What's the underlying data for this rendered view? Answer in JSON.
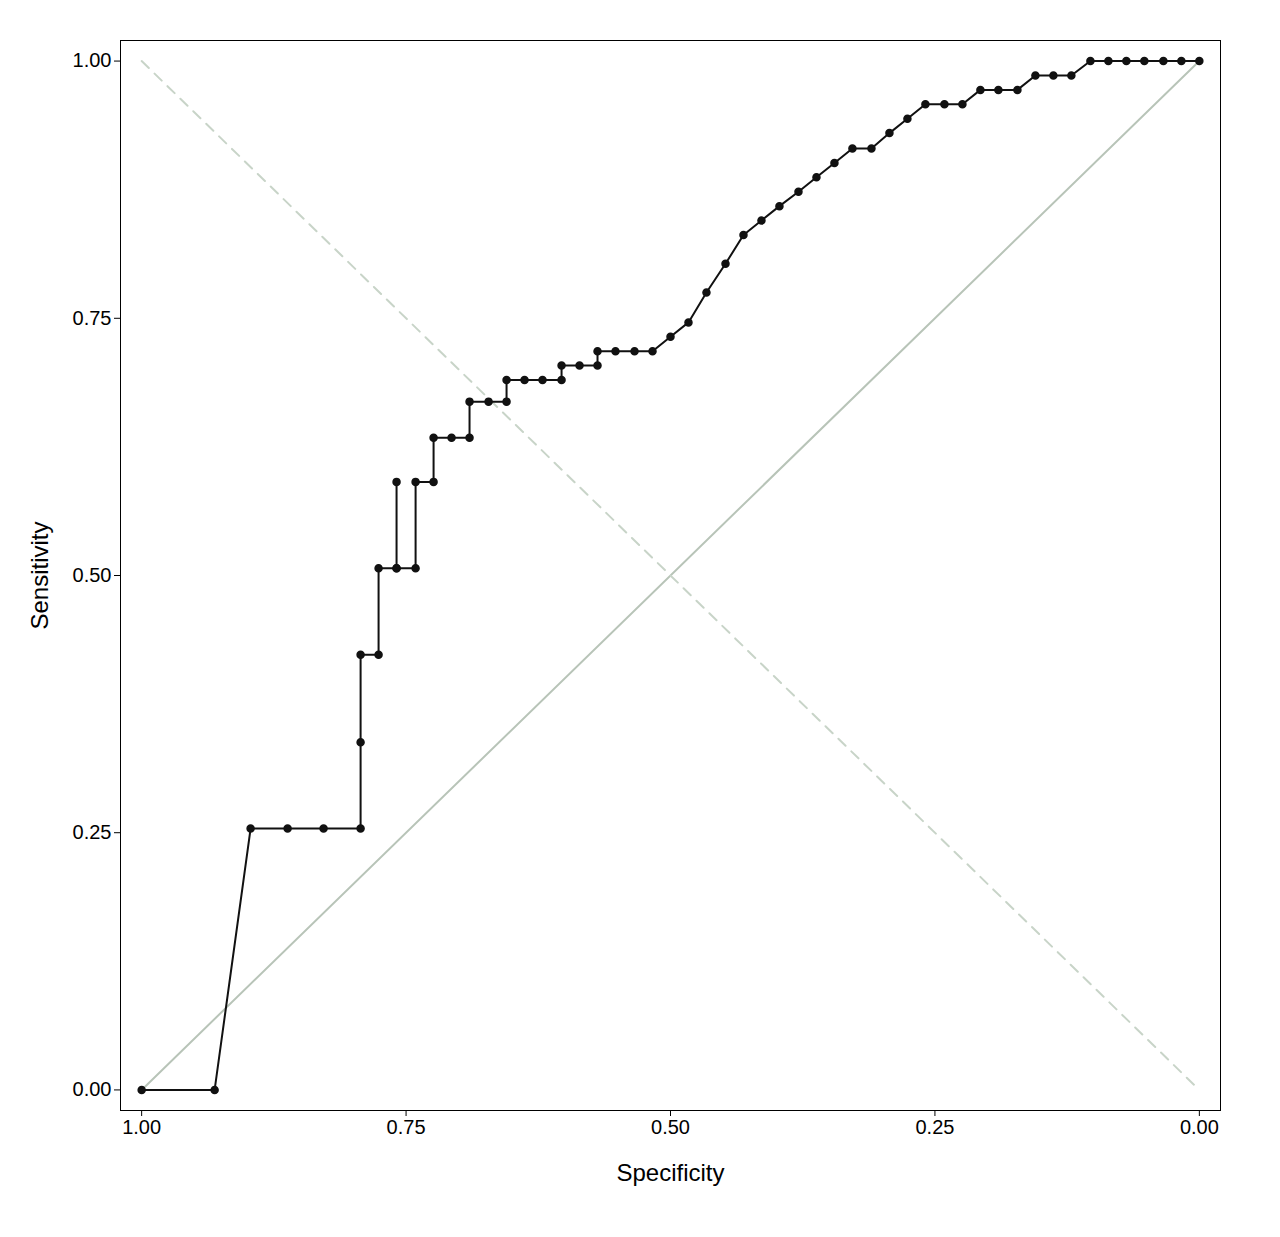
{
  "chart_data": {
    "type": "line",
    "xlabel": "Specificity",
    "ylabel": "Sensitivity",
    "xlim": [
      1.02,
      -0.02
    ],
    "ylim": [
      -0.02,
      1.02
    ],
    "xticks": [
      {
        "value": 1.0,
        "label": "1.00"
      },
      0.75,
      {
        "value": 0.5,
        "label": "0.50"
      },
      0.25,
      {
        "value": 0.0,
        "label": "0.00"
      }
    ],
    "yticks": [
      {
        "value": 0.0,
        "label": "0.00"
      },
      0.25,
      {
        "value": 0.5,
        "label": "0.50"
      },
      0.75,
      {
        "value": 1.0,
        "label": "1.00"
      }
    ],
    "series": [
      {
        "x": [
          1.0,
          0.0
        ],
        "values": [
          0.0,
          1.0
        ],
        "color": "#b8c4b8",
        "line_style": "solid"
      },
      {
        "x": [
          1.0,
          0.0
        ],
        "values": [
          1.0,
          0.0
        ],
        "color": "#c8d4c8",
        "line_style": "dashed"
      },
      {
        "x": [
          1.0,
          0.931,
          0.897,
          0.862,
          0.828,
          0.793,
          0.793,
          0.793,
          0.776,
          0.776,
          0.759,
          0.759,
          0.759,
          0.741,
          0.741,
          0.724,
          0.724,
          0.707,
          0.69,
          0.69,
          0.672,
          0.655,
          0.655,
          0.638,
          0.621,
          0.603,
          0.603,
          0.586,
          0.569,
          0.569,
          0.552,
          0.534,
          0.517,
          0.5,
          0.483,
          0.466,
          0.448,
          0.431,
          0.414,
          0.397,
          0.379,
          0.362,
          0.345,
          0.328,
          0.31,
          0.293,
          0.276,
          0.259,
          0.241,
          0.224,
          0.207,
          0.19,
          0.172,
          0.155,
          0.138,
          0.121,
          0.103,
          0.086,
          0.069,
          0.052,
          0.034,
          0.017,
          0.0
        ],
        "values": [
          0.0,
          0.0,
          0.254,
          0.254,
          0.254,
          0.254,
          0.338,
          0.423,
          0.423,
          0.507,
          0.507,
          0.591,
          0.507,
          0.507,
          0.591,
          0.591,
          0.634,
          0.634,
          0.634,
          0.669,
          0.669,
          0.669,
          0.69,
          0.69,
          0.69,
          0.69,
          0.704,
          0.704,
          0.704,
          0.718,
          0.718,
          0.718,
          0.718,
          0.732,
          0.746,
          0.775,
          0.803,
          0.831,
          0.845,
          0.859,
          0.873,
          0.887,
          0.901,
          0.915,
          0.915,
          0.93,
          0.944,
          0.958,
          0.958,
          0.958,
          0.972,
          0.972,
          0.972,
          0.986,
          0.986,
          0.986,
          1.0,
          1.0,
          1.0,
          1.0,
          1.0,
          1.0,
          1.0
        ],
        "color": "#111111",
        "line_style": "solid",
        "marker": "circle"
      }
    ]
  }
}
